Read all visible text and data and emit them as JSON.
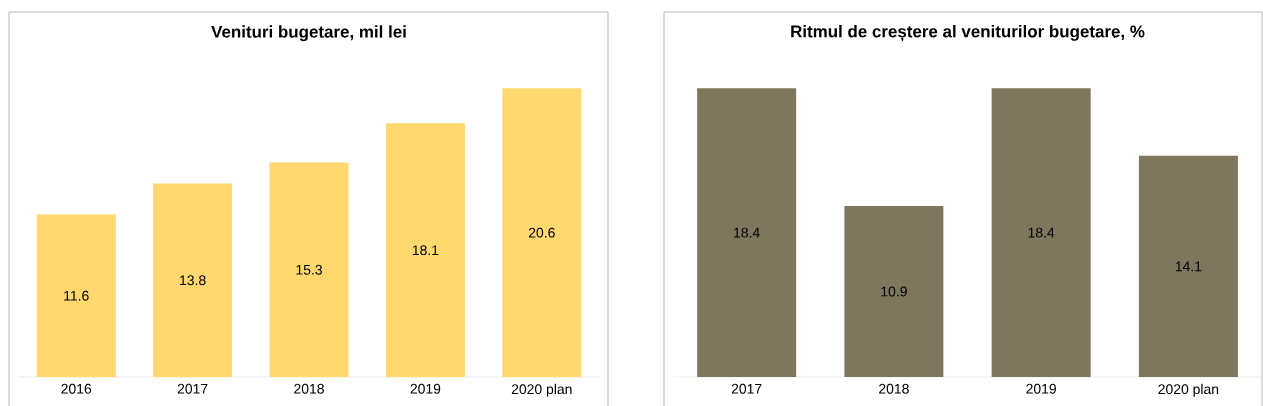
{
  "chart_data": [
    {
      "type": "bar",
      "title": "Venituri bugetare, mil lei",
      "categories": [
        "2016",
        "2017",
        "2018",
        "2019",
        "2020 plan"
      ],
      "values": [
        11.6,
        13.8,
        15.3,
        18.1,
        20.6
      ],
      "color": "#ffd870",
      "data_labels": true
    },
    {
      "type": "bar",
      "title": "Ritmul de creștere al veniturilor bugetare, %",
      "categories": [
        "2017",
        "2018",
        "2019",
        "2020 plan"
      ],
      "values": [
        18.4,
        10.9,
        18.4,
        14.1
      ],
      "color": "#7f765e",
      "data_labels": true
    }
  ]
}
